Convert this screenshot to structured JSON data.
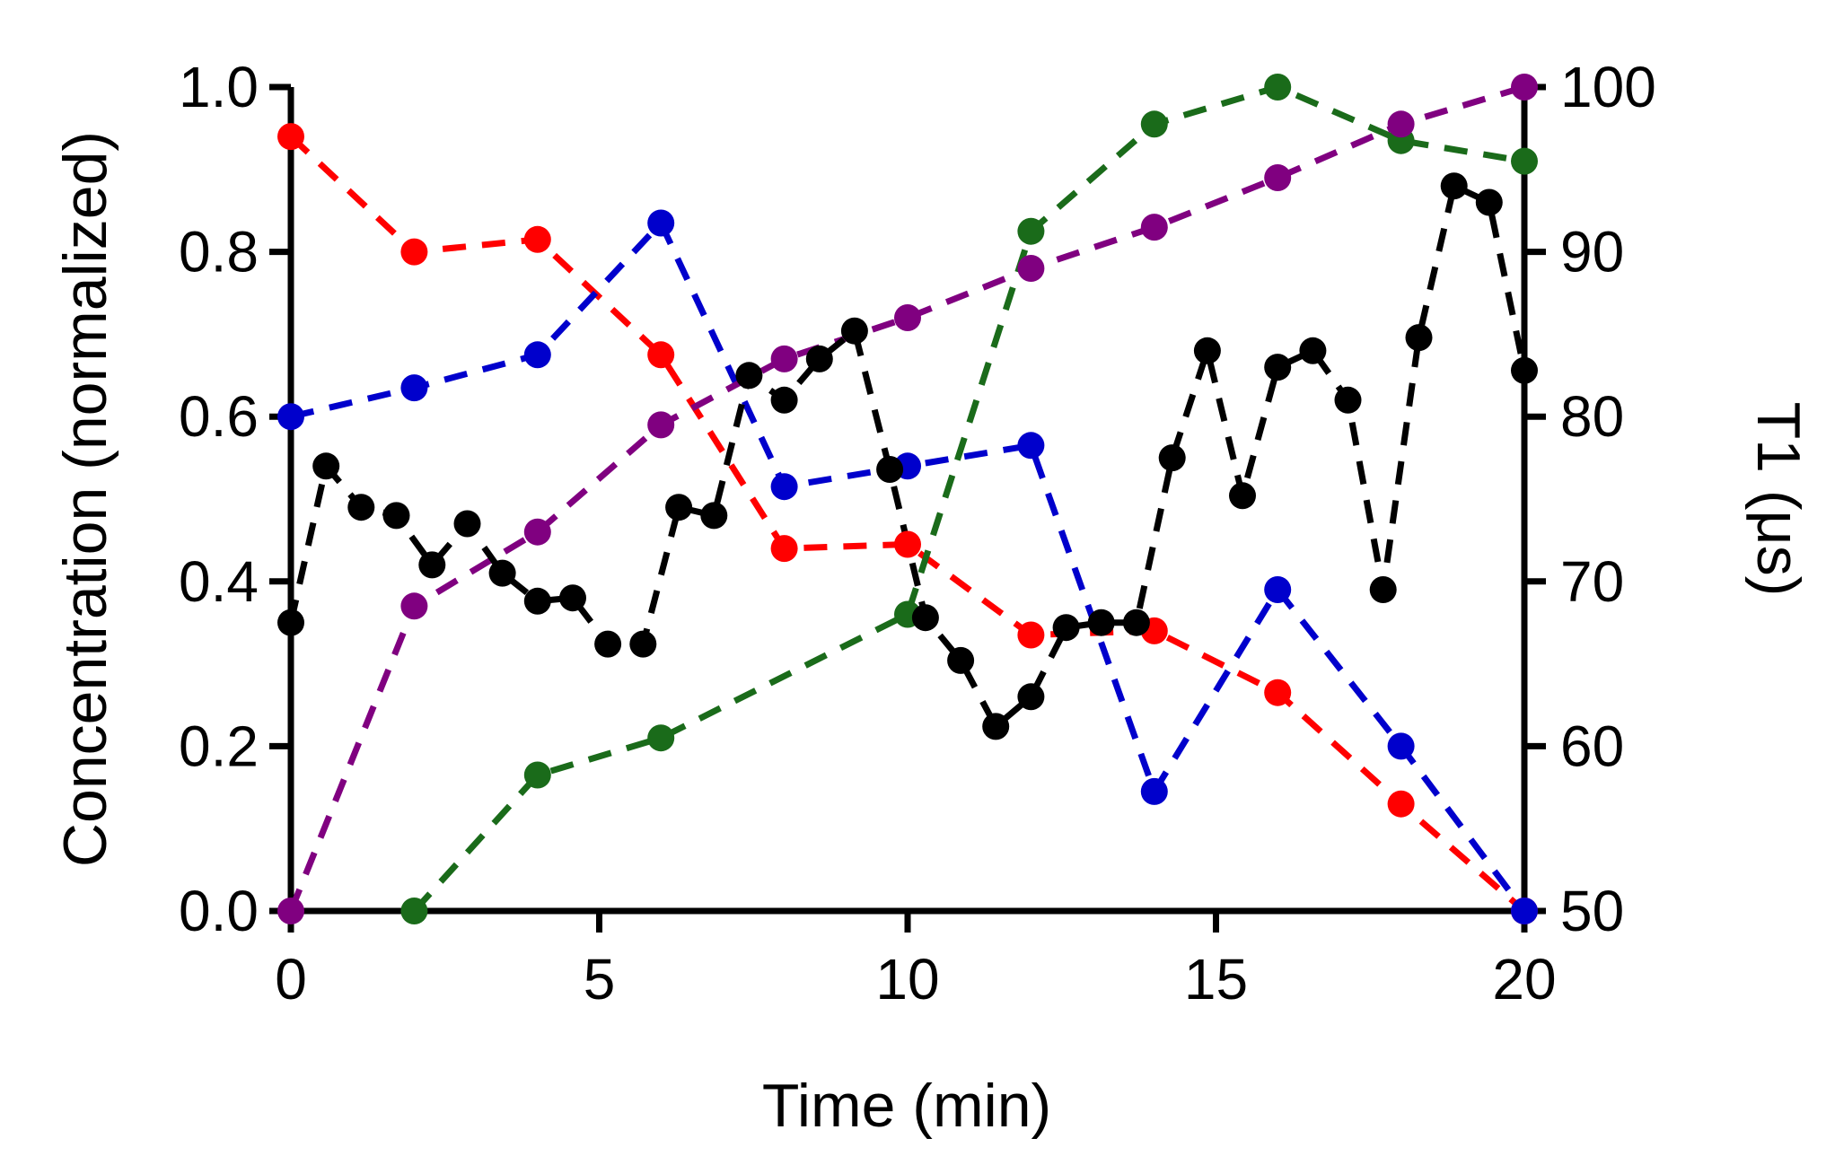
{
  "chart_data": {
    "type": "line",
    "title": "",
    "xlabel": "Time (min)",
    "ylabel": "Concentration (normalized)",
    "y2label": "T1 (μs)",
    "xlim": [
      0,
      20
    ],
    "ylim": [
      0,
      1.0
    ],
    "y2lim": [
      50,
      100
    ],
    "xticks": [
      0,
      5,
      10,
      15,
      20
    ],
    "xtick_labels": [
      "0",
      "5",
      "10",
      "15",
      "20"
    ],
    "yticks": [
      0,
      0.2,
      0.4,
      0.6,
      0.8,
      1.0
    ],
    "ytick_labels": [
      "0.0",
      "0.2",
      "0.4",
      "0.6",
      "0.8",
      "1.0"
    ],
    "y2ticks": [
      50,
      60,
      70,
      80,
      90,
      100
    ],
    "y2tick_labels": [
      "50",
      "60",
      "70",
      "80",
      "90",
      "100"
    ],
    "grid": false,
    "series": [
      {
        "name": "red",
        "color": "#ff0000",
        "axis": "left",
        "x": [
          0,
          2,
          4,
          6,
          8,
          10,
          12,
          14,
          16,
          18,
          20
        ],
        "y": [
          0.94,
          0.8,
          0.815,
          0.675,
          0.44,
          0.445,
          0.335,
          0.34,
          0.265,
          0.13,
          0.0
        ]
      },
      {
        "name": "blue",
        "color": "#0000cc",
        "axis": "left",
        "x": [
          0,
          2,
          4,
          6,
          8,
          10,
          12,
          14,
          16,
          18,
          20
        ],
        "y": [
          0.6,
          0.635,
          0.675,
          0.835,
          0.515,
          0.54,
          0.565,
          0.145,
          0.39,
          0.2,
          0.0
        ]
      },
      {
        "name": "green",
        "color": "#1a6b1a",
        "axis": "left",
        "x": [
          2,
          4,
          6,
          10,
          12,
          14,
          16,
          18,
          20
        ],
        "y": [
          0.0,
          0.165,
          0.21,
          0.36,
          0.825,
          0.955,
          1.0,
          0.935,
          0.91
        ]
      },
      {
        "name": "purple",
        "color": "#800080",
        "axis": "left",
        "x": [
          0,
          2,
          4,
          6,
          8,
          10,
          12,
          14,
          16,
          18,
          20
        ],
        "y": [
          0.0,
          0.37,
          0.46,
          0.59,
          0.67,
          0.72,
          0.78,
          0.83,
          0.89,
          0.955,
          1.0
        ]
      },
      {
        "name": "T1",
        "color": "#000000",
        "axis": "right",
        "x": [
          0,
          0.57,
          1.14,
          1.71,
          2.29,
          2.86,
          3.43,
          4.0,
          4.57,
          5.14,
          5.71,
          6.29,
          6.86,
          7.43,
          8.0,
          8.57,
          9.14,
          9.71,
          10.29,
          10.86,
          11.43,
          12.0,
          12.57,
          13.14,
          13.71,
          14.29,
          14.86,
          15.43,
          16.0,
          16.57,
          17.14,
          17.71,
          18.29,
          18.86,
          19.43,
          20.0
        ],
        "y": [
          67.5,
          77.0,
          74.5,
          74.0,
          71.0,
          73.5,
          70.5,
          68.8,
          69.0,
          66.2,
          66.2,
          74.5,
          74.0,
          82.5,
          81.0,
          83.5,
          85.2,
          76.8,
          67.8,
          65.2,
          61.2,
          63.0,
          67.2,
          67.5,
          67.5,
          77.5,
          84.0,
          75.2,
          83.0,
          84.0,
          81.0,
          69.5,
          84.8,
          94.0,
          93.0,
          82.8
        ]
      }
    ]
  }
}
